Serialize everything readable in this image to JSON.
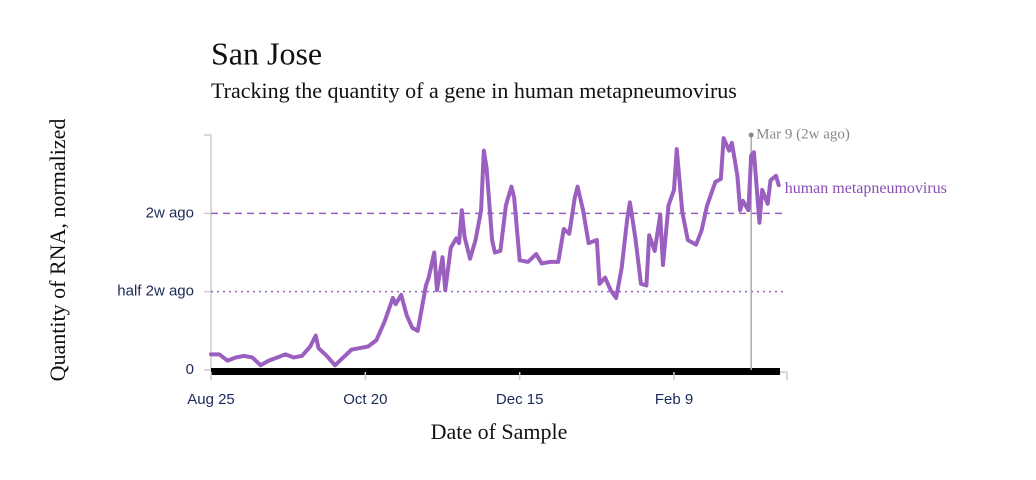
{
  "chart_data": {
    "type": "line",
    "title": "San Jose",
    "subtitle": "Tracking the quantity of a gene in human metapneumovirus",
    "x_label": "Date of Sample",
    "y_label": "Quantity of RNA, normalized",
    "x": [
      "Aug 25",
      "Aug 28",
      "Aug 31",
      "Sep 3",
      "Sep 6",
      "Sep 9",
      "Sep 12",
      "Sep 15",
      "Sep 18",
      "Sep 21",
      "Sep 24",
      "Sep 27",
      "Sep 30",
      "Oct 2",
      "Oct 3",
      "Oct 6",
      "Oct 9",
      "Oct 12",
      "Oct 15",
      "Oct 18",
      "Oct 21",
      "Oct 24",
      "Oct 27",
      "Oct 30",
      "Oct 31",
      "Nov 2",
      "Nov 4",
      "Nov 6",
      "Nov 8",
      "Nov 11",
      "Nov 12",
      "Nov 14",
      "Nov 15",
      "Nov 17",
      "Nov 18",
      "Nov 20",
      "Nov 22",
      "Nov 23",
      "Nov 24",
      "Nov 25",
      "Nov 27",
      "Nov 29",
      "Dec 1",
      "Dec 2",
      "Dec 3",
      "Dec 5",
      "Dec 6",
      "Dec 8",
      "Dec 10",
      "Dec 12",
      "Dec 13",
      "Dec 15",
      "Dec 18",
      "Dec 21",
      "Dec 23",
      "Dec 26",
      "Dec 29",
      "Dec 31",
      "Jan 2",
      "Jan 4",
      "Jan 5",
      "Jan 7",
      "Jan 9",
      "Jan 12",
      "Jan 13",
      "Jan 15",
      "Jan 17",
      "Jan 19",
      "Jan 21",
      "Jan 23",
      "Jan 24",
      "Jan 26",
      "Jan 28",
      "Jan 30",
      "Jan 31",
      "Feb 2",
      "Feb 4",
      "Feb 5",
      "Feb 7",
      "Feb 9",
      "Feb 10",
      "Feb 12",
      "Feb 14",
      "Feb 17",
      "Feb 19",
      "Feb 21",
      "Feb 24",
      "Feb 26",
      "Feb 27",
      "Mar 1",
      "Mar 2",
      "Mar 4",
      "Mar 5",
      "Mar 6",
      "Mar 8",
      "Mar 9",
      "Mar 10",
      "Mar 12",
      "Mar 13",
      "Mar 15",
      "Mar 16",
      "Mar 18",
      "Mar 19"
    ],
    "series": [
      {
        "name": "human metapneumovirus",
        "color": "#9b5fc0",
        "values": [
          0.1,
          0.1,
          0.06,
          0.08,
          0.09,
          0.08,
          0.03,
          0.06,
          0.08,
          0.1,
          0.08,
          0.09,
          0.15,
          0.22,
          0.14,
          0.09,
          0.03,
          0.08,
          0.13,
          0.14,
          0.15,
          0.19,
          0.31,
          0.46,
          0.42,
          0.48,
          0.35,
          0.27,
          0.25,
          0.54,
          0.59,
          0.75,
          0.51,
          0.72,
          0.51,
          0.78,
          0.84,
          0.81,
          1.02,
          0.85,
          0.71,
          0.83,
          1.02,
          1.4,
          1.29,
          0.83,
          0.75,
          0.76,
          1.05,
          1.17,
          1.1,
          0.7,
          0.69,
          0.74,
          0.68,
          0.69,
          0.69,
          0.9,
          0.87,
          1.1,
          1.17,
          1.02,
          0.81,
          0.83,
          0.55,
          0.59,
          0.51,
          0.46,
          0.65,
          0.96,
          1.07,
          0.84,
          0.55,
          0.54,
          0.86,
          0.76,
          0.99,
          0.67,
          1.05,
          1.15,
          1.41,
          1.01,
          0.83,
          0.8,
          0.89,
          1.05,
          1.2,
          1.22,
          1.48,
          1.4,
          1.45,
          1.24,
          1.02,
          1.08,
          1.02,
          1.37,
          1.39,
          0.94,
          1.15,
          1.06,
          1.21,
          1.24,
          1.18
        ]
      }
    ],
    "xlim": [
      "Aug 25",
      "Mar 22"
    ],
    "xticks": [
      "Aug 25",
      "Oct 20",
      "Dec 15",
      "Feb 9"
    ],
    "ylim": [
      0,
      1.5
    ],
    "yticks": [
      0,
      {
        "value": 0.5,
        "label": "half 2w ago"
      },
      {
        "value": 1,
        "label": "2w ago"
      }
    ],
    "grid": true,
    "annotation": {
      "x": "Mar 9",
      "text": "Mar 9 (2w ago)"
    }
  }
}
